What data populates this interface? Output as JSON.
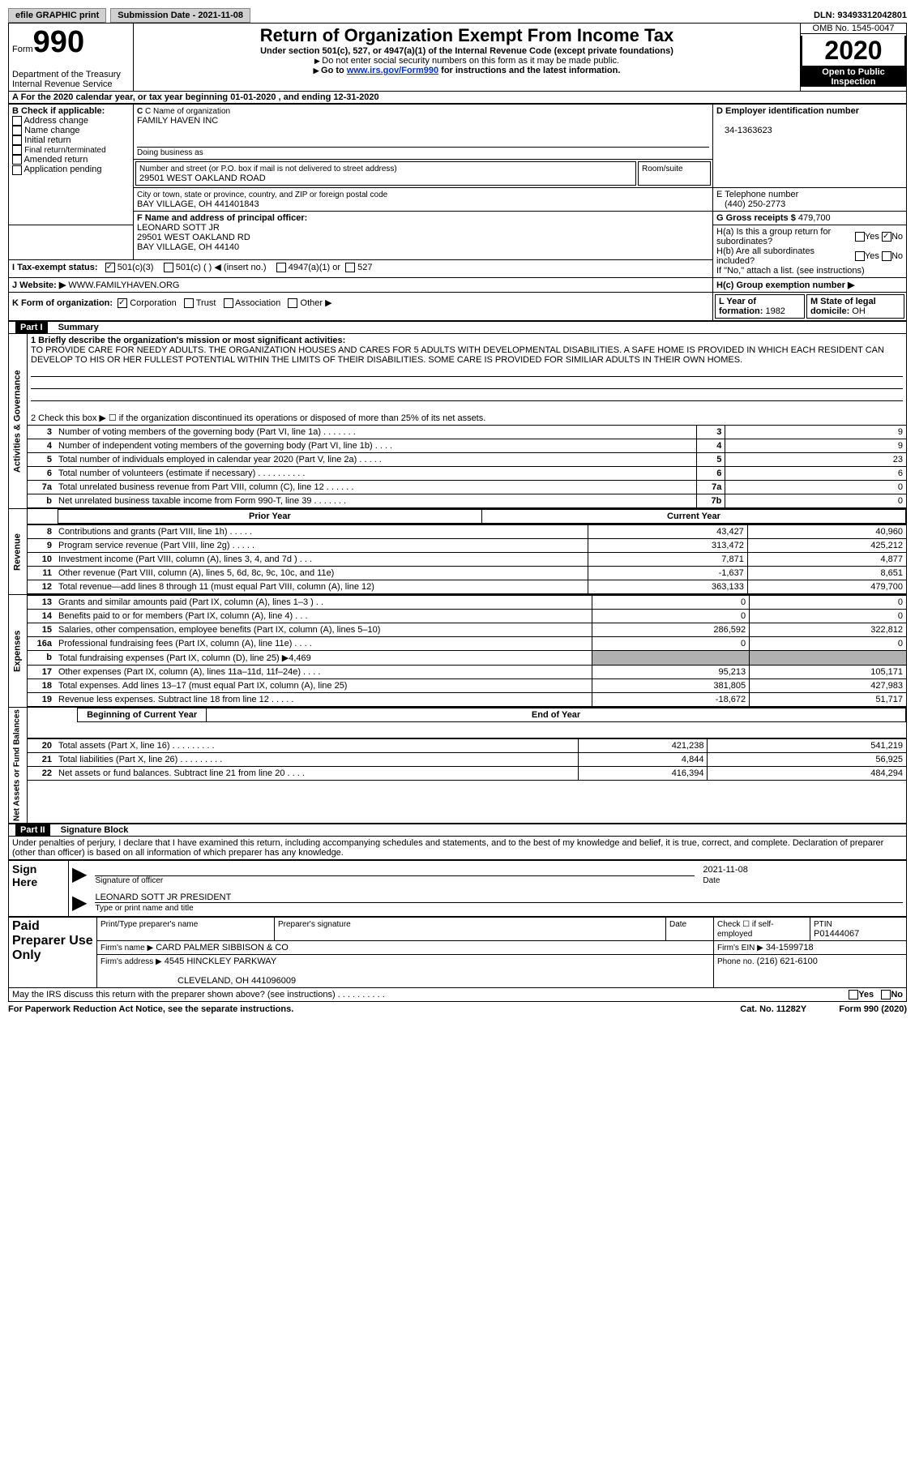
{
  "top": {
    "efile_label": "efile GRAPHIC print",
    "sub_date_label": "Submission Date - 2021-11-08",
    "dln": "DLN: 93493312042801"
  },
  "header": {
    "form_small": "Form",
    "form_big": "990",
    "title": "Return of Organization Exempt From Income Tax",
    "subtitle1": "Under section 501(c), 527, or 4947(a)(1) of the Internal Revenue Code (except private foundations)",
    "subtitle2": "Do not enter social security numbers on this form as it may be made public.",
    "subtitle3_pre": "Go to ",
    "subtitle3_link": "www.irs.gov/Form990",
    "subtitle3_post": " for instructions and the latest information.",
    "dept": "Department of the Treasury",
    "irs": "Internal Revenue Service",
    "omb": "OMB No. 1545-0047",
    "year": "2020",
    "otp1": "Open to Public",
    "otp2": "Inspection"
  },
  "sectionA": {
    "text": "A For the 2020 calendar year, or tax year beginning 01-01-2020   , and ending 12-31-2020"
  },
  "sectionB": {
    "label": "B Check if applicable:",
    "opts": [
      "Address change",
      "Name change",
      "Initial return",
      "Final return/terminated",
      "Amended return",
      "Application pending"
    ]
  },
  "sectionC": {
    "name_label": "C Name of organization",
    "name": "FAMILY HAVEN INC",
    "dba_label": "Doing business as",
    "dba": "",
    "street_label": "Number and street (or P.O. box if mail is not delivered to street address)",
    "street": "29501 WEST OAKLAND ROAD",
    "room_label": "Room/suite",
    "city_label": "City or town, state or province, country, and ZIP or foreign postal code",
    "city": "BAY VILLAGE, OH  441401843"
  },
  "sectionD": {
    "label": "D Employer identification number",
    "ein": "34-1363623"
  },
  "sectionE": {
    "label": "E Telephone number",
    "phone": "(440) 250-2773"
  },
  "sectionG": {
    "label": "G Gross receipts $",
    "val": "479,700"
  },
  "sectionF": {
    "label": "F Name and address of principal officer:",
    "name": "LEONARD SOTT JR",
    "street": "29501 WEST OAKLAND RD",
    "city": "BAY VILLAGE, OH  44140"
  },
  "sectionH": {
    "ha": "H(a)  Is this a group return for subordinates?",
    "hb": "H(b)  Are all subordinates included?",
    "hb_sub": "If \"No,\" attach a list. (see instructions)",
    "hc": "H(c)  Group exemption number ▶",
    "yes": "Yes",
    "no": "No"
  },
  "sectionI": {
    "label": "I   Tax-exempt status:",
    "opts": [
      "501(c)(3)",
      "501(c) (  ) ◀ (insert no.)",
      "4947(a)(1) or",
      "527"
    ]
  },
  "sectionJ": {
    "label": "J   Website: ▶",
    "val": " WWW.FAMILYHAVEN.ORG"
  },
  "sectionK": {
    "label": "K Form of organization:",
    "opts": [
      "Corporation",
      "Trust",
      "Association",
      "Other ▶"
    ]
  },
  "sectionL": {
    "label": "L Year of formation: ",
    "val": "1982"
  },
  "sectionM": {
    "label": "M State of legal domicile: ",
    "val": "OH"
  },
  "partI": {
    "header": "Part I",
    "title": "Summary",
    "line1_label": "1   Briefly describe the organization's mission or most significant activities:",
    "mission": "TO PROVIDE CARE FOR NEEDY ADULTS. THE ORGANIZATION HOUSES AND CARES FOR 5 ADULTS WITH DEVELOPMENTAL DISABILITIES. A SAFE HOME IS PROVIDED IN WHICH EACH RESIDENT CAN DEVELOP TO HIS OR HER FULLEST POTENTIAL WITHIN THE LIMITS OF THEIR DISABILITIES. SOME CARE IS PROVIDED FOR SIMILIAR ADULTS IN THEIR OWN HOMES.",
    "line2": "2   Check this box ▶ ☐  if the organization discontinued its operations or disposed of more than 25% of its net assets."
  },
  "governance_rows": [
    {
      "n": "3",
      "text": "Number of voting members of the governing body (Part VI, line 1a)    .    .    .    .    .    .    .",
      "box": "3",
      "val": "9"
    },
    {
      "n": "4",
      "text": "Number of independent voting members of the governing body (Part VI, line 1b)  .    .    .    .",
      "box": "4",
      "val": "9"
    },
    {
      "n": "5",
      "text": "Total number of individuals employed in calendar year 2020 (Part V, line 2a)  .    .    .    .    .",
      "box": "5",
      "val": "23"
    },
    {
      "n": "6",
      "text": "Total number of volunteers (estimate if necessary)   .    .    .    .    .    .    .    .    .    .",
      "box": "6",
      "val": "6"
    },
    {
      "n": "7a",
      "text": "Total unrelated business revenue from Part VIII, column (C), line 12    .    .    .    .    .    .",
      "box": "7a",
      "val": "0"
    },
    {
      "n": "b",
      "text": "Net unrelated business taxable income from Form 990-T, line 39   .    .    .    .    .    .    .",
      "box": "7b",
      "val": "0"
    }
  ],
  "revenue_header": {
    "prior": "Prior Year",
    "current": "Current Year"
  },
  "revenue_rows": [
    {
      "n": "8",
      "text": "Contributions and grants (Part VIII, line 1h)   .    .    .    .    .",
      "prior": "43,427",
      "curr": "40,960"
    },
    {
      "n": "9",
      "text": "Program service revenue (Part VIII, line 2g)   .    .    .    .    .",
      "prior": "313,472",
      "curr": "425,212"
    },
    {
      "n": "10",
      "text": "Investment income (Part VIII, column (A), lines 3, 4, and 7d )   .    .    .",
      "prior": "7,871",
      "curr": "4,877"
    },
    {
      "n": "11",
      "text": "Other revenue (Part VIII, column (A), lines 5, 6d, 8c, 9c, 10c, and 11e)",
      "prior": "-1,637",
      "curr": "8,651"
    },
    {
      "n": "12",
      "text": "Total revenue—add lines 8 through 11 (must equal Part VIII, column (A), line 12)",
      "prior": "363,133",
      "curr": "479,700"
    }
  ],
  "expense_rows": [
    {
      "n": "13",
      "text": "Grants and similar amounts paid (Part IX, column (A), lines 1–3 )    .    .",
      "prior": "0",
      "curr": "0"
    },
    {
      "n": "14",
      "text": "Benefits paid to or for members (Part IX, column (A), line 4)  .    .    .",
      "prior": "0",
      "curr": "0"
    },
    {
      "n": "15",
      "text": "Salaries, other compensation, employee benefits (Part IX, column (A), lines 5–10)",
      "prior": "286,592",
      "curr": "322,812"
    },
    {
      "n": "16a",
      "text": "Professional fundraising fees (Part IX, column (A), line 11e)  .    .    .    .",
      "prior": "0",
      "curr": "0"
    },
    {
      "n": "b",
      "text": "Total fundraising expenses (Part IX, column (D), line 25) ▶4,469",
      "prior": "GREY",
      "curr": "GREY"
    },
    {
      "n": "17",
      "text": "Other expenses (Part IX, column (A), lines 11a–11d, 11f–24e)  .    .    .    .",
      "prior": "95,213",
      "curr": "105,171"
    },
    {
      "n": "18",
      "text": "Total expenses. Add lines 13–17 (must equal Part IX, column (A), line 25)",
      "prior": "381,805",
      "curr": "427,983"
    },
    {
      "n": "19",
      "text": "Revenue less expenses. Subtract line 18 from line 12  .    .    .    .    .",
      "prior": "-18,672",
      "curr": "51,717"
    }
  ],
  "netassets_header": {
    "prior": "Beginning of Current Year",
    "curr": "End of Year"
  },
  "netassets_rows": [
    {
      "n": "20",
      "text": "Total assets (Part X, line 16)    .    .    .    .    .    .    .    .    .",
      "prior": "421,238",
      "curr": "541,219"
    },
    {
      "n": "21",
      "text": "Total liabilities (Part X, line 26)   .    .    .    .    .    .    .    .    .",
      "prior": "4,844",
      "curr": "56,925"
    },
    {
      "n": "22",
      "text": "Net assets or fund balances. Subtract line 21 from line 20  .    .    .    .",
      "prior": "416,394",
      "curr": "484,294"
    }
  ],
  "vert_labels": {
    "gov": "Activities & Governance",
    "rev": "Revenue",
    "exp": "Expenses",
    "net": "Net Assets or Fund Balances"
  },
  "partII": {
    "header": "Part II",
    "title": "Signature Block",
    "decl": "Under penalties of perjury, I declare that I have examined this return, including accompanying schedules and statements, and to the best of my knowledge and belief, it is true, correct, and complete. Declaration of preparer (other than officer) is based on all information of which preparer has any knowledge."
  },
  "sign": {
    "sign_here": "Sign Here",
    "sig_officer": "Signature of officer",
    "date_label": "Date",
    "date": "2021-11-08",
    "name_title": "LEONARD SOTT JR  PRESIDENT",
    "type_label": "Type or print name and title"
  },
  "paid": {
    "header": "Paid Preparer Use Only",
    "col1": "Print/Type preparer's name",
    "col2": "Preparer's signature",
    "col3": "Date",
    "check_label": "Check ☐ if self-employed",
    "ptin_label": "PTIN",
    "ptin": "P01444067",
    "firm_name_label": "Firm's name    ▶",
    "firm_name": "CARD PALMER SIBBISON & CO",
    "firm_ein_label": "Firm's EIN ▶",
    "firm_ein": "34-1599718",
    "firm_addr_label": "Firm's address ▶",
    "firm_addr1": "4545 HINCKLEY PARKWAY",
    "firm_addr2": "CLEVELAND, OH  441096009",
    "firm_phone_label": "Phone no.",
    "firm_phone": "(216) 621-6100"
  },
  "discuss": {
    "text": "May the IRS discuss this return with the preparer shown above? (see instructions)    .    .    .    .    .    .    .    .    .    .",
    "yes": "Yes",
    "no": "No"
  },
  "footer": {
    "left": "For Paperwork Reduction Act Notice, see the separate instructions.",
    "mid": "Cat. No. 11282Y",
    "right": "Form 990 (2020)"
  }
}
